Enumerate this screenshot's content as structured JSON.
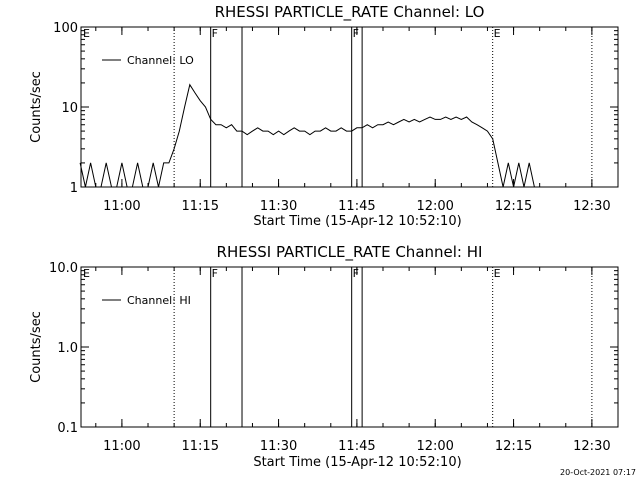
{
  "chart_data": [
    {
      "type": "line",
      "title": "RHESSI PARTICLE_RATE Channel: LO",
      "xlabel": "Start Time (15-Apr-12 10:52:10)",
      "ylabel": "Counts/sec",
      "yscale": "log",
      "ylim": [
        1,
        100
      ],
      "ytick_labels": [
        "1",
        "10",
        "100"
      ],
      "xlim": [
        "10:52:10",
        "12:35:00"
      ],
      "xtick_labels": [
        "11:00",
        "11:15",
        "11:30",
        "11:45",
        "12:00",
        "12:15",
        "12:30"
      ],
      "legend": {
        "label": "Channel: LO",
        "placement": "top-left"
      },
      "event_markers": [
        {
          "time": "11:10",
          "flag": "",
          "style": "dotted"
        },
        {
          "time": "11:17",
          "flag": "F",
          "style": "solid"
        },
        {
          "time": "11:23",
          "flag": "",
          "style": "solid"
        },
        {
          "time": "11:44",
          "flag": "F",
          "style": "solid"
        },
        {
          "time": "11:46",
          "flag": "",
          "style": "solid"
        },
        {
          "time": "12:11",
          "flag": "E",
          "style": "dotted"
        },
        {
          "time": "12:30",
          "flag": "",
          "style": "dotted"
        }
      ],
      "corner_flag": "E",
      "series": [
        {
          "x": [
            "10:52",
            "10:53",
            "10:54",
            "10:55",
            "10:56",
            "10:57",
            "10:58",
            "10:59",
            "11:00",
            "11:01",
            "11:02",
            "11:03",
            "11:04",
            "11:05",
            "11:06",
            "11:07",
            "11:08",
            "11:09",
            "11:10",
            "11:11",
            "11:12",
            "11:13",
            "11:14",
            "11:15",
            "11:16",
            "11:17",
            "11:18",
            "11:19",
            "11:20",
            "11:21",
            "11:22",
            "11:23",
            "11:24",
            "11:25",
            "11:26",
            "11:27",
            "11:28",
            "11:29",
            "11:30",
            "11:31",
            "11:32",
            "11:33",
            "11:34",
            "11:35",
            "11:36",
            "11:37",
            "11:38",
            "11:39",
            "11:40",
            "11:41",
            "11:42",
            "11:43",
            "11:44",
            "11:45",
            "11:46",
            "11:47",
            "11:48",
            "11:49",
            "11:50",
            "11:51",
            "11:52",
            "11:53",
            "11:54",
            "11:55",
            "11:56",
            "11:57",
            "11:58",
            "11:59",
            "12:00",
            "12:01",
            "12:02",
            "12:03",
            "12:04",
            "12:05",
            "12:06",
            "12:07",
            "12:08",
            "12:09",
            "12:10",
            "12:11",
            "12:12",
            "12:13",
            "12:14",
            "12:15",
            "12:16",
            "12:17",
            "12:18",
            "12:19",
            "12:20"
          ],
          "values": [
            2,
            1,
            2,
            1,
            1,
            2,
            1,
            1,
            2,
            1,
            1,
            2,
            1,
            1,
            2,
            1,
            2,
            2,
            3,
            5,
            10,
            19,
            15,
            12,
            10,
            7,
            6,
            6,
            5.5,
            6,
            5,
            5,
            4.5,
            5,
            5.5,
            5,
            5,
            4.5,
            5,
            4.5,
            5,
            5.5,
            5,
            5,
            4.5,
            5,
            5,
            5.5,
            5,
            5,
            5.5,
            5,
            5,
            5.5,
            5.5,
            6,
            5.5,
            6,
            6,
            6.5,
            6,
            6.5,
            7,
            6.5,
            7,
            6.5,
            7,
            7.5,
            7,
            7,
            7.5,
            7,
            7.5,
            7,
            7.5,
            6.5,
            6,
            5.5,
            5,
            4,
            2,
            1,
            2,
            1,
            2,
            1,
            2,
            1,
            1
          ]
        }
      ]
    },
    {
      "type": "line",
      "title": "RHESSI PARTICLE_RATE Channel: HI",
      "xlabel": "Start Time (15-Apr-12 10:52:10)",
      "ylabel": "Counts/sec",
      "yscale": "log",
      "ylim": [
        0.1,
        10
      ],
      "ytick_labels": [
        "0.1",
        "1.0",
        "10.0"
      ],
      "xlim": [
        "10:52:10",
        "12:35:00"
      ],
      "xtick_labels": [
        "11:00",
        "11:15",
        "11:30",
        "11:45",
        "12:00",
        "12:15",
        "12:30"
      ],
      "legend": {
        "label": "Channel: HI",
        "placement": "top-left"
      },
      "event_markers": [
        {
          "time": "11:10",
          "flag": "",
          "style": "dotted"
        },
        {
          "time": "11:17",
          "flag": "F",
          "style": "solid"
        },
        {
          "time": "11:23",
          "flag": "",
          "style": "solid"
        },
        {
          "time": "11:44",
          "flag": "F",
          "style": "solid"
        },
        {
          "time": "11:46",
          "flag": "",
          "style": "solid"
        },
        {
          "time": "12:11",
          "flag": "E",
          "style": "dotted"
        },
        {
          "time": "12:30",
          "flag": "",
          "style": "dotted"
        }
      ],
      "corner_flag": "E",
      "series": []
    }
  ],
  "footer": {
    "timestamp": "20-Oct-2021 07:17"
  }
}
